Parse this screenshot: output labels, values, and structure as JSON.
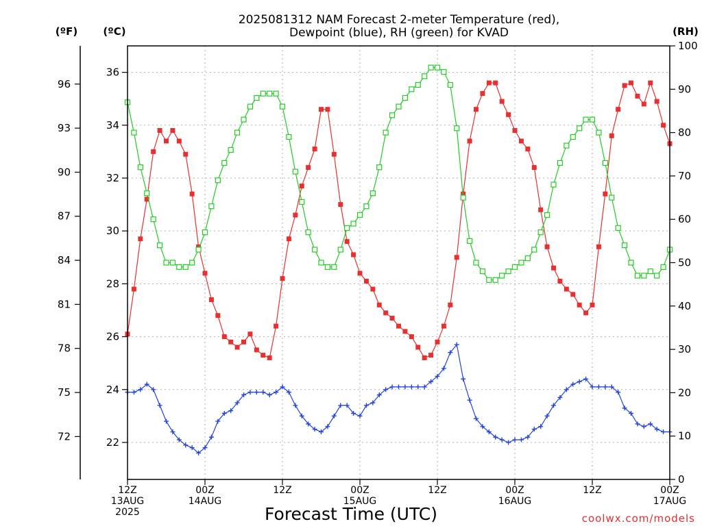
{
  "chart_data": {
    "type": "line",
    "title": [
      "2025081312 NAM Forecast 2-meter Temperature (red),",
      "Dewpoint (blue), RH (green) for KVAD"
    ],
    "xlabel": "Forecast Time (UTC)",
    "credit": "coolwx.com/models",
    "units": {
      "fahrenheit": "(ºF)",
      "celsius": "(ºC)",
      "rh": "(RH)"
    },
    "x_unit": "forecast hour from 2025-08-13 12Z",
    "xlim": [
      0,
      84
    ],
    "x_ticks": [
      {
        "x": 0,
        "lines": [
          "12Z",
          "13AUG",
          "2025"
        ]
      },
      {
        "x": 12,
        "lines": [
          "00Z",
          "14AUG"
        ]
      },
      {
        "x": 24,
        "lines": [
          "12Z",
          ""
        ]
      },
      {
        "x": 36,
        "lines": [
          "00Z",
          "15AUG"
        ]
      },
      {
        "x": 48,
        "lines": [
          "12Z",
          ""
        ]
      },
      {
        "x": 60,
        "lines": [
          "00Z",
          "16AUG"
        ]
      },
      {
        "x": 72,
        "lines": [
          "12Z",
          ""
        ]
      },
      {
        "x": 84,
        "lines": [
          "00Z",
          "17AUG"
        ]
      }
    ],
    "celsius_axis": {
      "ylim": [
        20.6,
        37.0
      ],
      "ticks": [
        22,
        24,
        26,
        28,
        30,
        32,
        34,
        36
      ]
    },
    "fahrenheit_axis": {
      "ticks": [
        72,
        75,
        78,
        81,
        84,
        87,
        90,
        93,
        96
      ]
    },
    "rh_axis": {
      "ylim": [
        0,
        100
      ],
      "ticks": [
        0,
        10,
        20,
        30,
        40,
        50,
        60,
        70,
        80,
        90,
        100
      ]
    },
    "grid": true,
    "series": [
      {
        "name": "Temperature",
        "color": "#e83030",
        "marker": "filled-square",
        "axis": "celsius",
        "x": [
          0,
          1,
          2,
          3,
          4,
          5,
          6,
          7,
          8,
          9,
          10,
          11,
          12,
          13,
          14,
          15,
          16,
          17,
          18,
          19,
          20,
          21,
          22,
          23,
          24,
          25,
          26,
          27,
          28,
          29,
          30,
          31,
          32,
          33,
          34,
          35,
          36,
          37,
          38,
          39,
          40,
          41,
          42,
          43,
          44,
          45,
          46,
          47,
          48,
          49,
          50,
          51,
          52,
          53,
          54,
          55,
          56,
          57,
          58,
          59,
          60,
          61,
          62,
          63,
          64,
          65,
          66,
          67,
          68,
          69,
          70,
          71,
          72,
          73,
          74,
          75,
          76,
          77,
          78,
          79,
          80,
          81,
          82,
          83,
          84
        ],
        "y": [
          26.1,
          27.8,
          29.7,
          31.2,
          33.0,
          33.8,
          33.4,
          33.8,
          33.4,
          32.9,
          31.4,
          29.4,
          28.4,
          27.4,
          26.8,
          26.0,
          25.8,
          25.6,
          25.8,
          26.1,
          25.5,
          25.3,
          25.2,
          26.4,
          28.2,
          29.7,
          30.6,
          31.7,
          32.4,
          33.1,
          34.6,
          34.6,
          32.9,
          31.0,
          29.6,
          29.1,
          28.4,
          28.1,
          27.8,
          27.2,
          26.9,
          26.7,
          26.4,
          26.2,
          26.0,
          25.6,
          25.2,
          25.3,
          25.8,
          26.4,
          27.2,
          29.0,
          31.4,
          33.4,
          34.6,
          35.2,
          35.6,
          35.6,
          34.9,
          34.4,
          33.8,
          33.4,
          33.1,
          32.4,
          30.8,
          29.4,
          28.6,
          28.1,
          27.8,
          27.6,
          27.2,
          26.9,
          27.2,
          29.4,
          31.4,
          33.6,
          34.6,
          35.5,
          35.6,
          35.1,
          34.8,
          35.6,
          34.9,
          34.0,
          33.3
        ]
      },
      {
        "name": "Dewpoint",
        "color": "#2244dd",
        "marker": "plus",
        "axis": "celsius",
        "x": [
          0,
          1,
          2,
          3,
          4,
          5,
          6,
          7,
          8,
          9,
          10,
          11,
          12,
          13,
          14,
          15,
          16,
          17,
          18,
          19,
          20,
          21,
          22,
          23,
          24,
          25,
          26,
          27,
          28,
          29,
          30,
          31,
          32,
          33,
          34,
          35,
          36,
          37,
          38,
          39,
          40,
          41,
          42,
          43,
          44,
          45,
          46,
          47,
          48,
          49,
          50,
          51,
          52,
          53,
          54,
          55,
          56,
          57,
          58,
          59,
          60,
          61,
          62,
          63,
          64,
          65,
          66,
          67,
          68,
          69,
          70,
          71,
          72,
          73,
          74,
          75,
          76,
          77,
          78,
          79,
          80,
          81,
          82,
          83,
          84
        ],
        "y": [
          23.9,
          23.9,
          24.0,
          24.2,
          24.0,
          23.4,
          22.8,
          22.4,
          22.1,
          21.9,
          21.8,
          21.6,
          21.8,
          22.2,
          22.8,
          23.1,
          23.2,
          23.5,
          23.8,
          23.9,
          23.9,
          23.9,
          23.8,
          23.9,
          24.1,
          23.9,
          23.4,
          23.0,
          22.7,
          22.5,
          22.4,
          22.6,
          23.0,
          23.4,
          23.4,
          23.1,
          23.0,
          23.4,
          23.5,
          23.8,
          24.0,
          24.1,
          24.1,
          24.1,
          24.1,
          24.1,
          24.1,
          24.3,
          24.5,
          24.8,
          25.4,
          25.7,
          24.4,
          23.6,
          22.9,
          22.6,
          22.4,
          22.2,
          22.1,
          22.0,
          22.1,
          22.1,
          22.2,
          22.5,
          22.6,
          23.0,
          23.4,
          23.7,
          24.0,
          24.2,
          24.3,
          24.4,
          24.1,
          24.1,
          24.1,
          24.1,
          23.9,
          23.3,
          23.1,
          22.7,
          22.6,
          22.7,
          22.5,
          22.4,
          22.4
        ]
      },
      {
        "name": "RH",
        "color": "#22cc22",
        "marker": "open-square",
        "axis": "rh",
        "x": [
          0,
          1,
          2,
          3,
          4,
          5,
          6,
          7,
          8,
          9,
          10,
          11,
          12,
          13,
          14,
          15,
          16,
          17,
          18,
          19,
          20,
          21,
          22,
          23,
          24,
          25,
          26,
          27,
          28,
          29,
          30,
          31,
          32,
          33,
          34,
          35,
          36,
          37,
          38,
          39,
          40,
          41,
          42,
          43,
          44,
          45,
          46,
          47,
          48,
          49,
          50,
          51,
          52,
          53,
          54,
          55,
          56,
          57,
          58,
          59,
          60,
          61,
          62,
          63,
          64,
          65,
          66,
          67,
          68,
          69,
          70,
          71,
          72,
          73,
          74,
          75,
          76,
          77,
          78,
          79,
          80,
          81,
          82,
          83,
          84
        ],
        "y": [
          87,
          80,
          72,
          66,
          60,
          54,
          50,
          50,
          49,
          49,
          50,
          53,
          57,
          63,
          69,
          73,
          76,
          80,
          83,
          86,
          88,
          89,
          89,
          89,
          86,
          79,
          71,
          64,
          57,
          53,
          50,
          49,
          49,
          53,
          58,
          59,
          61,
          63,
          66,
          72,
          80,
          84,
          86,
          88,
          90,
          91,
          93,
          95,
          95,
          94,
          91,
          81,
          65,
          55,
          50,
          48,
          46,
          46,
          47,
          48,
          49,
          50,
          51,
          53,
          57,
          61,
          68,
          73,
          77,
          79,
          81,
          83,
          83,
          80,
          73,
          65,
          58,
          54,
          50,
          47,
          47,
          48,
          47,
          49,
          53
        ]
      }
    ]
  }
}
